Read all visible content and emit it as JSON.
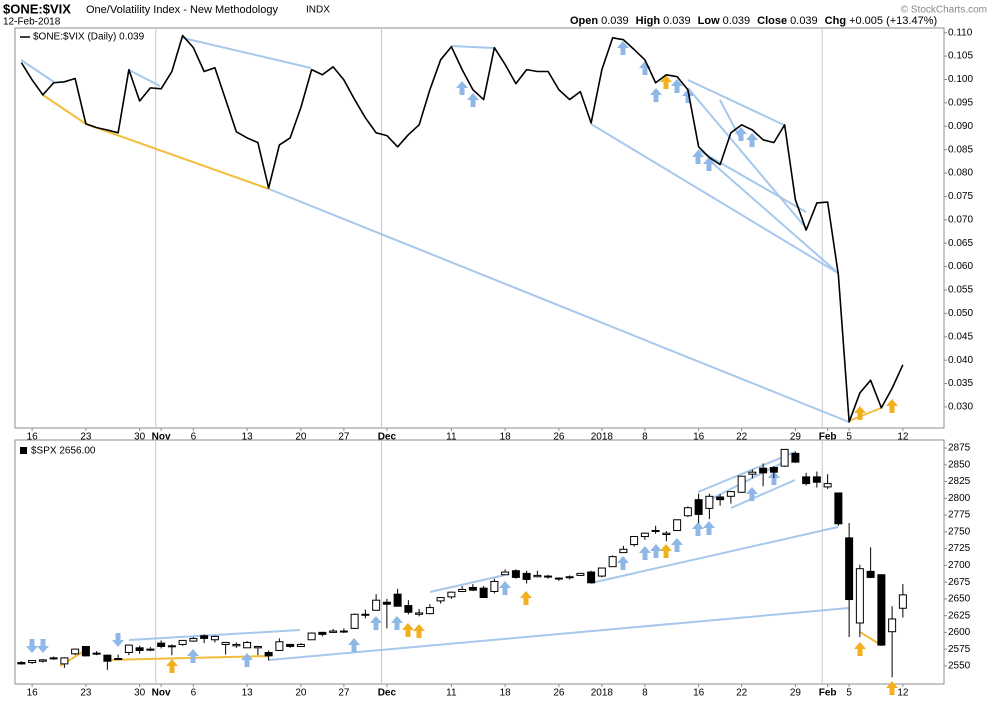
{
  "header": {
    "symbol": "$ONE:$VIX",
    "name": "One/Volatility Index - New Methodology",
    "exchange": "INDX",
    "date": "12-Feb-2018",
    "quote": [
      {
        "label": "Open",
        "value": 0.039
      },
      {
        "label": "High",
        "value": 0.039
      },
      {
        "label": "Low",
        "value": 0.039
      },
      {
        "label": "Close",
        "value": 0.039
      },
      {
        "label": "Chg",
        "value": "+0.005 (+13.47%)"
      }
    ],
    "copyright": "© StockCharts.com"
  },
  "chart_data": [
    {
      "type": "line",
      "categories": [
        null,
        "16",
        null,
        null,
        null,
        null,
        "23",
        null,
        null,
        null,
        null,
        "30",
        null,
        "Nov",
        null,
        null,
        "6",
        null,
        null,
        null,
        null,
        "13",
        null,
        null,
        null,
        null,
        "20",
        null,
        null,
        null,
        "27",
        null,
        null,
        null,
        "Dec",
        null,
        null,
        null,
        null,
        null,
        "11",
        null,
        null,
        null,
        null,
        "18",
        null,
        null,
        null,
        null,
        "26",
        null,
        null,
        null,
        "2018",
        null,
        null,
        null,
        "8",
        null,
        null,
        null,
        null,
        "16",
        null,
        null,
        null,
        "22",
        null,
        null,
        null,
        null,
        "29",
        null,
        null,
        "Feb",
        null,
        "5",
        null,
        null,
        null,
        null,
        "12"
      ],
      "series": [
        {
          "name": "$ONE:$VIX (Daily) 0.039",
          "color": "#000000",
          "values": [
            0.1036,
            0.0999,
            0.0967,
            0.0993,
            0.0995,
            0.1002,
            0.0905,
            0.0897,
            0.0892,
            0.0886,
            0.1021,
            0.0954,
            0.0982,
            0.098,
            0.1017,
            0.1094,
            0.1068,
            0.1017,
            0.1025,
            0.0957,
            0.0888,
            0.0875,
            0.0865,
            0.0768,
            0.086,
            0.0875,
            0.094,
            0.1021,
            0.101,
            0.1027,
            0.0999,
            0.0957,
            0.0918,
            0.0886,
            0.088,
            0.0856,
            0.0882,
            0.0903,
            0.0978,
            0.1042,
            0.107,
            0.1021,
            0.0978,
            0.0957,
            0.1068,
            0.1032,
            0.0991,
            0.1021,
            0.1017,
            0.1017,
            0.0978,
            0.0957,
            0.0974,
            0.0907,
            0.1021,
            0.1089,
            0.1085,
            0.1064,
            0.1042,
            0.0993,
            0.101,
            0.1006,
            0.0978,
            0.0856,
            0.0833,
            0.0818,
            0.0886,
            0.0903,
            0.0892,
            0.0871,
            0.0865,
            0.0903,
            0.0743,
            0.0678,
            0.0736,
            0.0738,
            0.0582,
            0.0268,
            0.033,
            0.0357,
            0.0298,
            0.034,
            0.039
          ]
        }
      ],
      "ylim": [
        0.0255,
        0.111
      ],
      "yticks": [
        {
          "value": 0.03,
          "label": "0.030"
        },
        0.035,
        {
          "value": 0.04,
          "label": "0.040"
        },
        0.045,
        {
          "value": 0.05,
          "label": "0.050"
        },
        0.055,
        {
          "value": 0.06,
          "label": "0.060"
        },
        0.065,
        {
          "value": 0.07,
          "label": "0.070"
        },
        0.075,
        {
          "value": 0.08,
          "label": "0.080"
        },
        0.085,
        {
          "value": 0.09,
          "label": "0.090"
        },
        0.095,
        {
          "value": 0.1,
          "label": "0.100"
        },
        0.105,
        {
          "value": 0.11,
          "label": "0.110"
        }
      ],
      "grid": false
    },
    {
      "type": "candlestick",
      "categories": [
        null,
        "16",
        null,
        null,
        null,
        null,
        "23",
        null,
        null,
        null,
        null,
        "30",
        null,
        "Nov",
        null,
        null,
        "6",
        null,
        null,
        null,
        null,
        "13",
        null,
        null,
        null,
        null,
        "20",
        null,
        null,
        null,
        "27",
        null,
        null,
        null,
        "Dec",
        null,
        null,
        null,
        null,
        null,
        "11",
        null,
        null,
        null,
        null,
        "18",
        null,
        null,
        null,
        null,
        "26",
        null,
        null,
        null,
        "2018",
        null,
        null,
        null,
        "8",
        null,
        null,
        null,
        null,
        "16",
        null,
        null,
        null,
        "22",
        null,
        null,
        null,
        null,
        "29",
        null,
        null,
        "Feb",
        null,
        "5",
        null,
        null,
        null,
        null,
        "12"
      ],
      "series": [
        {
          "name": "$SPX 2656.00",
          "color": "#000000",
          "up_color": "#ffffff",
          "down_color": "#000000",
          "open": [
            2555,
            2555,
            2557,
            2562,
            2553,
            2568,
            2579,
            2568,
            2566,
            2561,
            2570,
            2577,
            2575,
            2584,
            2579,
            2582,
            2587,
            2595,
            2589,
            2582,
            2580,
            2577,
            2577,
            2570,
            2573,
            2582,
            2579,
            2589,
            2600,
            2600,
            2602,
            2606,
            2627,
            2633,
            2645,
            2657,
            2640,
            2627,
            2628,
            2647,
            2653,
            2661,
            2667,
            2666,
            2661,
            2686,
            2692,
            2688,
            2683,
            2684,
            2680,
            2683,
            2685,
            2690,
            2684,
            2698,
            2719,
            2731,
            2743,
            2752,
            2746,
            2752,
            2774,
            2798,
            2785,
            2802,
            2803,
            2809,
            2836,
            2845,
            2846,
            2848,
            2867,
            2832,
            2832,
            2817,
            2808,
            2741,
            2614,
            2691,
            2686,
            2601,
            2636
          ],
          "high": [
            2557,
            2558,
            2560,
            2564,
            2563,
            2576,
            2579,
            2572,
            2567,
            2567,
            2582,
            2580,
            2578,
            2588,
            2582,
            2588,
            2593,
            2597,
            2595,
            2584,
            2585,
            2587,
            2579,
            2573,
            2591,
            2583,
            2584,
            2600,
            2601,
            2605,
            2606,
            2628,
            2634,
            2657,
            2650,
            2665,
            2648,
            2635,
            2642,
            2652,
            2661,
            2669,
            2672,
            2669,
            2680,
            2694,
            2694,
            2692,
            2692,
            2686,
            2682,
            2685,
            2688,
            2692,
            2696,
            2715,
            2729,
            2744,
            2749,
            2759,
            2751,
            2768,
            2788,
            2807,
            2807,
            2806,
            2811,
            2833,
            2843,
            2852,
            2848,
            2873,
            2870,
            2838,
            2840,
            2836,
            2808,
            2763,
            2701,
            2727,
            2686,
            2639,
            2672
          ],
          "low": [
            2552,
            2553,
            2555,
            2559,
            2547,
            2566,
            2564,
            2566,
            2544,
            2559,
            2566,
            2568,
            2572,
            2576,
            2566,
            2580,
            2586,
            2584,
            2585,
            2567,
            2577,
            2577,
            2566,
            2558,
            2573,
            2577,
            2578,
            2589,
            2594,
            2599,
            2599,
            2605,
            2621,
            2633,
            2606,
            2639,
            2627,
            2624,
            2627,
            2643,
            2650,
            2660,
            2662,
            2652,
            2658,
            2686,
            2680,
            2673,
            2682,
            2680,
            2677,
            2679,
            2684,
            2673,
            2682,
            2698,
            2719,
            2728,
            2738,
            2747,
            2736,
            2752,
            2772,
            2763,
            2769,
            2789,
            2792,
            2808,
            2830,
            2818,
            2830,
            2847,
            2853,
            2819,
            2816,
            2814,
            2759,
            2593,
            2593,
            2681,
            2580,
            2533,
            2622
          ],
          "close": [
            2553,
            2558,
            2559,
            2561,
            2562,
            2575,
            2565,
            2569,
            2557,
            2560,
            2581,
            2573,
            2575,
            2579,
            2580,
            2588,
            2591,
            2591,
            2594,
            2585,
            2582,
            2585,
            2579,
            2565,
            2586,
            2579,
            2582,
            2599,
            2597,
            2602,
            2601,
            2627,
            2626,
            2648,
            2642,
            2639,
            2630,
            2629,
            2637,
            2652,
            2660,
            2664,
            2663,
            2652,
            2676,
            2690,
            2682,
            2679,
            2685,
            2683,
            2681,
            2683,
            2688,
            2674,
            2696,
            2713,
            2724,
            2743,
            2748,
            2751,
            2748,
            2768,
            2786,
            2776,
            2803,
            2798,
            2810,
            2833,
            2839,
            2838,
            2839,
            2873,
            2854,
            2822,
            2824,
            2822,
            2762,
            2649,
            2695,
            2682,
            2581,
            2620,
            2656
          ]
        }
      ],
      "ylim": [
        2523,
        2887
      ],
      "yticks": [
        2550,
        2575,
        2600,
        2625,
        2650,
        2675,
        2700,
        2725,
        2750,
        2775,
        2800,
        2825,
        2850,
        2875
      ],
      "grid": false
    }
  ]
}
